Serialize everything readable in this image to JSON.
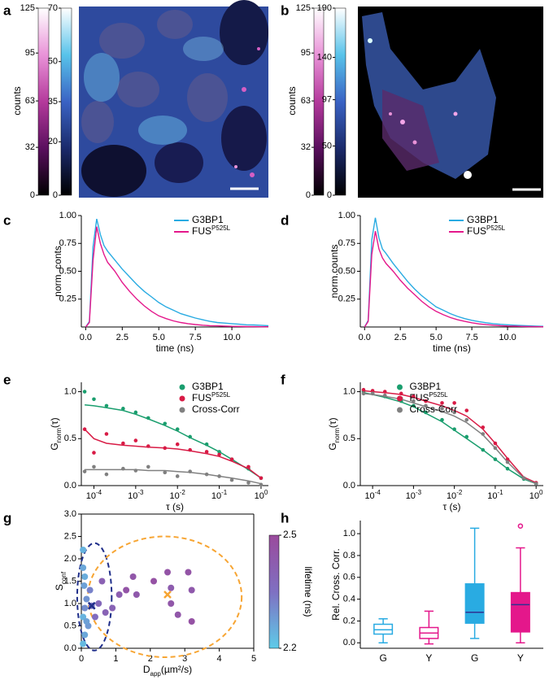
{
  "chart_data": [
    {
      "type": "image",
      "label": "a",
      "colorbar_label": "counts",
      "colorbars": [
        {
          "lim": [
            0,
            125
          ],
          "ticks": [
            0,
            32,
            63,
            95,
            125
          ],
          "colors": [
            "#000000",
            "#5a0f5e",
            "#b43a9c",
            "#e993d8",
            "#ffffff"
          ]
        },
        {
          "lim": [
            0,
            70
          ],
          "ticks": [
            0,
            20,
            35,
            50,
            70
          ],
          "colors": [
            "#000000",
            "#1b2a6b",
            "#3a63c4",
            "#58c3ea",
            "#ffffff"
          ]
        }
      ]
    },
    {
      "type": "image",
      "label": "b",
      "colorbar_label": "counts",
      "colorbars": [
        {
          "lim": [
            0,
            125
          ],
          "ticks": [
            0,
            32,
            63,
            95,
            125
          ],
          "colors": [
            "#000000",
            "#5a0f5e",
            "#b43a9c",
            "#e993d8",
            "#ffffff"
          ]
        },
        {
          "lim": [
            0,
            190
          ],
          "ticks": [
            0,
            50,
            97,
            140,
            190
          ],
          "colors": [
            "#000000",
            "#1b2a6b",
            "#3a63c4",
            "#58c3ea",
            "#ffffff"
          ]
        }
      ]
    },
    {
      "type": "line",
      "label": "c",
      "xlabel": "time (ns)",
      "ylabel": "norm. conts",
      "legend": "upper right",
      "xlim": [
        -0.3,
        12.5
      ],
      "ylim": [
        0,
        1
      ],
      "xticks": [
        {
          "value": 0,
          "label": "0.0"
        },
        2.5,
        {
          "value": 5,
          "label": "5.0"
        },
        7.5,
        {
          "value": 10,
          "label": "10.0"
        }
      ],
      "yticks": [
        0.25,
        {
          "value": 0.5,
          "label": "0.50"
        },
        0.75,
        {
          "value": 1,
          "label": "1.00"
        }
      ],
      "x": [
        0,
        0.25,
        0.5,
        0.75,
        1,
        1.25,
        1.5,
        2,
        2.5,
        3,
        3.5,
        4,
        4.5,
        5,
        5.5,
        6,
        6.5,
        7,
        7.5,
        8,
        8.5,
        9,
        9.5,
        10,
        10.5,
        11,
        11.5,
        12,
        12.5
      ],
      "series": [
        {
          "name": "G3BP1",
          "color": "#29abe2",
          "values": [
            0,
            0.05,
            0.72,
            0.97,
            0.83,
            0.73,
            0.68,
            0.6,
            0.52,
            0.45,
            0.38,
            0.32,
            0.27,
            0.22,
            0.18,
            0.15,
            0.12,
            0.1,
            0.08,
            0.065,
            0.05,
            0.04,
            0.035,
            0.03,
            0.025,
            0.02,
            0.018,
            0.015,
            0.012
          ]
        },
        {
          "name": "FUS",
          "name_sup": "P525L",
          "color": "#e4178b",
          "values": [
            0,
            0.04,
            0.6,
            0.9,
            0.75,
            0.65,
            0.58,
            0.5,
            0.4,
            0.32,
            0.25,
            0.19,
            0.14,
            0.1,
            0.075,
            0.055,
            0.04,
            0.03,
            0.022,
            0.016,
            0.012,
            0.01,
            0.008,
            0.006,
            0.005,
            0.004,
            0.003,
            0.002,
            0.002
          ]
        }
      ]
    },
    {
      "type": "line",
      "label": "d",
      "xlabel": "time (ns)",
      "ylabel": "norm.counts",
      "legend": "upper right",
      "xlim": [
        -0.3,
        12.5
      ],
      "ylim": [
        0,
        1
      ],
      "xticks": [
        {
          "value": 0,
          "label": "0.0"
        },
        2.5,
        {
          "value": 5,
          "label": "5.0"
        },
        7.5,
        {
          "value": 10,
          "label": "10.0"
        }
      ],
      "yticks": [
        0.25,
        {
          "value": 0.5,
          "label": "0.50"
        },
        0.75,
        {
          "value": 1,
          "label": "1.00"
        }
      ],
      "x": [
        0,
        0.25,
        0.5,
        0.75,
        1,
        1.25,
        1.5,
        2,
        2.5,
        3,
        3.5,
        4,
        4.5,
        5,
        5.5,
        6,
        6.5,
        7,
        7.5,
        8,
        8.5,
        9,
        9.5,
        10,
        10.5,
        11,
        11.5,
        12,
        12.5
      ],
      "series": [
        {
          "name": "G3BP1",
          "color": "#29abe2",
          "values": [
            0,
            0.06,
            0.78,
            0.98,
            0.8,
            0.7,
            0.66,
            0.57,
            0.49,
            0.41,
            0.34,
            0.28,
            0.23,
            0.18,
            0.15,
            0.12,
            0.095,
            0.075,
            0.06,
            0.048,
            0.038,
            0.03,
            0.024,
            0.02,
            0.016,
            0.013,
            0.01,
            0.008,
            0.006
          ]
        },
        {
          "name": "FUS",
          "name_sup": "P525L",
          "color": "#e4178b",
          "values": [
            0,
            0.05,
            0.65,
            0.86,
            0.7,
            0.62,
            0.57,
            0.5,
            0.42,
            0.35,
            0.29,
            0.23,
            0.18,
            0.14,
            0.11,
            0.085,
            0.065,
            0.05,
            0.038,
            0.028,
            0.021,
            0.016,
            0.012,
            0.009,
            0.007,
            0.005,
            0.004,
            0.003,
            0.002
          ]
        }
      ]
    },
    {
      "type": "scatter",
      "label": "e",
      "xlabel": "τ (s)",
      "ylabel": {
        "text": "G",
        "sub": "norm",
        "rest": "(τ)"
      },
      "xscale": "log",
      "legend": "upper right",
      "xlim": [
        5e-05,
        1.5
      ],
      "ylim": [
        0,
        1.1
      ],
      "xticks": [
        {
          "value": 0.0001,
          "label": "10",
          "label_sup": "-4"
        },
        {
          "value": 0.001,
          "label": "10",
          "label_sup": "-3"
        },
        {
          "value": 0.01,
          "label": "10",
          "label_sup": "-2"
        },
        {
          "value": 0.1,
          "label": "10",
          "label_sup": "-1"
        },
        {
          "value": 1,
          "label": "10",
          "label_sup": "0"
        }
      ],
      "yticks": [
        {
          "value": 0,
          "label": "0.0"
        },
        0.5,
        {
          "value": 1,
          "label": "1.0"
        }
      ],
      "x": [
        6e-05,
        0.0001,
        0.0002,
        0.0005,
        0.001,
        0.002,
        0.005,
        0.01,
        0.02,
        0.05,
        0.1,
        0.2,
        0.5,
        1
      ],
      "series": [
        {
          "name": "G3BP1",
          "color": "#1a9e6e",
          "values": [
            1.0,
            0.92,
            0.85,
            0.82,
            0.78,
            0.72,
            0.66,
            0.6,
            0.52,
            0.44,
            0.36,
            0.28,
            0.18,
            0.08
          ],
          "fit": [
            0.86,
            0.85,
            0.83,
            0.8,
            0.76,
            0.71,
            0.64,
            0.58,
            0.51,
            0.43,
            0.36,
            0.28,
            0.17,
            0.08
          ]
        },
        {
          "name": "FUS",
          "name_sup": "P525L",
          "color": "#d81b45",
          "values": [
            0.6,
            0.35,
            0.55,
            0.45,
            0.48,
            0.42,
            0.4,
            0.44,
            0.38,
            0.36,
            0.33,
            0.28,
            0.2,
            0.08
          ],
          "fit": [
            0.6,
            0.5,
            0.45,
            0.43,
            0.42,
            0.41,
            0.4,
            0.39,
            0.37,
            0.34,
            0.31,
            0.26,
            0.18,
            0.08
          ]
        },
        {
          "name": "Cross-Corr",
          "color": "#808080",
          "values": [
            0.15,
            0.2,
            0.12,
            0.18,
            0.16,
            0.2,
            0.14,
            0.1,
            0.15,
            0.12,
            0.1,
            0.06,
            0.03,
            0.01
          ],
          "fit": [
            0.17,
            0.17,
            0.17,
            0.17,
            0.17,
            0.16,
            0.16,
            0.15,
            0.14,
            0.12,
            0.1,
            0.08,
            0.05,
            0.02
          ]
        }
      ]
    },
    {
      "type": "scatter",
      "label": "f",
      "xlabel": "τ (s)",
      "ylabel": {
        "text": "G",
        "sub": "norm",
        "rest": "(τ)"
      },
      "xscale": "log",
      "legend": "upper center",
      "xlim": [
        5e-05,
        1.5
      ],
      "ylim": [
        0,
        1.1
      ],
      "xticks": [
        {
          "value": 0.0001,
          "label": "10",
          "label_sup": "-4"
        },
        {
          "value": 0.001,
          "label": "10",
          "label_sup": "-3"
        },
        {
          "value": 0.01,
          "label": "10",
          "label_sup": "-2"
        },
        {
          "value": 0.1,
          "label": "10",
          "label_sup": "-1"
        },
        {
          "value": 1,
          "label": "10",
          "label_sup": "0"
        }
      ],
      "yticks": [
        {
          "value": 0,
          "label": "0.0"
        },
        0.5,
        {
          "value": 1,
          "label": "1.0"
        }
      ],
      "x": [
        6e-05,
        0.0001,
        0.0002,
        0.0005,
        0.001,
        0.002,
        0.005,
        0.01,
        0.02,
        0.05,
        0.1,
        0.2,
        0.5,
        1
      ],
      "series": [
        {
          "name": "G3BP1",
          "color": "#1a9e6e",
          "values": [
            1.0,
            0.98,
            0.95,
            0.9,
            0.85,
            0.78,
            0.7,
            0.6,
            0.52,
            0.38,
            0.28,
            0.18,
            0.07,
            0.02
          ],
          "fit": [
            0.99,
            0.97,
            0.94,
            0.89,
            0.84,
            0.77,
            0.68,
            0.59,
            0.5,
            0.38,
            0.28,
            0.18,
            0.07,
            0.02
          ]
        },
        {
          "name": "FUS",
          "name_sup": "P525L",
          "color": "#d81b45",
          "values": [
            1.02,
            1.01,
            1.0,
            0.98,
            0.95,
            0.9,
            0.88,
            0.88,
            0.8,
            0.62,
            0.45,
            0.28,
            0.08,
            0.03
          ],
          "fit": [
            1.01,
            1.0,
            0.99,
            0.97,
            0.94,
            0.9,
            0.85,
            0.8,
            0.74,
            0.6,
            0.45,
            0.29,
            0.09,
            0.03
          ]
        },
        {
          "name": "Cross-Corr",
          "color": "#808080",
          "values": [
            0.98,
            0.98,
            0.96,
            0.93,
            0.9,
            0.85,
            0.82,
            0.78,
            0.7,
            0.55,
            0.4,
            0.25,
            0.08,
            0.02
          ],
          "fit": [
            0.98,
            0.97,
            0.95,
            0.92,
            0.88,
            0.84,
            0.79,
            0.74,
            0.67,
            0.54,
            0.4,
            0.25,
            0.08,
            0.02
          ]
        }
      ]
    },
    {
      "type": "colormap_scatter",
      "label": "g",
      "xlabel": {
        "text": "D",
        "sub": "app",
        "rest": "(µm²/s)"
      },
      "ylabel": {
        "text": "S",
        "sub": "conf"
      },
      "frame": true,
      "xlim": [
        0,
        5
      ],
      "ylim": [
        0,
        3
      ],
      "xticks": [
        0,
        1,
        2,
        3,
        4,
        5
      ],
      "yticks": [
        {
          "value": 0,
          "label": "0.0"
        },
        0.5,
        {
          "value": 1,
          "label": "1.0"
        },
        1.5,
        {
          "value": 2,
          "label": "2.0"
        },
        2.5,
        {
          "value": 3,
          "label": "3.0"
        }
      ],
      "colorbar": {
        "label": "lifetime (ns)",
        "lim": [
          2.2,
          2.5
        ],
        "ticks": [
          2.2,
          2.5
        ],
        "colors": [
          "#5ecbe8",
          "#7f70c2",
          "#9a4a9c"
        ]
      },
      "ellipses": [
        {
          "cx": 0.38,
          "cy": 1.15,
          "rx": 0.5,
          "ry": 1.2,
          "color": "#1f2e8a"
        },
        {
          "cx": 2.42,
          "cy": 1.15,
          "rx": 2.23,
          "ry": 1.35,
          "color": "#f7a533"
        }
      ],
      "centers": [
        {
          "x": 0.3,
          "y": 0.95,
          "color": "#1f2e8a"
        },
        {
          "x": 2.5,
          "y": 1.2,
          "color": "#f7a533"
        }
      ],
      "x": [
        1.3,
        1.5,
        1.6,
        2.1,
        2.5,
        2.6,
        2.6,
        3.1,
        3.2,
        3.2,
        2.8,
        1.1,
        0.9,
        0.6,
        0.5,
        0.7,
        0.4,
        0.3,
        0.05,
        0.05,
        0.1,
        0.08,
        0.15,
        0.1,
        0.05,
        0.2,
        0.1,
        0.05,
        0.25,
        0.15
      ],
      "values": [
        1.3,
        1.6,
        1.2,
        1.5,
        1.7,
        1.0,
        1.35,
        1.7,
        1.3,
        0.6,
        0.75,
        1.2,
        0.9,
        1.5,
        1.0,
        0.8,
        0.7,
        0.95,
        2.2,
        1.8,
        1.6,
        1.4,
        1.1,
        0.9,
        0.7,
        0.5,
        0.3,
        0.1,
        1.3,
        0.6
      ],
      "lifetime": [
        2.46,
        2.45,
        2.44,
        2.47,
        2.46,
        2.45,
        2.43,
        2.46,
        2.44,
        2.47,
        2.45,
        2.42,
        2.4,
        2.41,
        2.38,
        2.4,
        2.36,
        2.34,
        2.24,
        2.26,
        2.25,
        2.27,
        2.29,
        2.3,
        2.24,
        2.28,
        2.26,
        2.23,
        2.32,
        2.27
      ]
    },
    {
      "type": "box",
      "label": "h",
      "ylabel": "Rel. Cross. Corr.",
      "ylim": [
        -0.05,
        1.12
      ],
      "yticks": [
        {
          "value": 0,
          "label": "0.0"
        },
        0.2,
        0.4,
        0.6,
        0.8,
        {
          "value": 1,
          "label": "1.0"
        }
      ],
      "categories": [
        "G",
        "Y",
        "G",
        "Y"
      ],
      "boxes": [
        {
          "min": 0.0,
          "q1": 0.08,
          "median": 0.12,
          "q3": 0.17,
          "max": 0.22,
          "color": "#29abe2",
          "filled": false
        },
        {
          "min": -0.01,
          "q1": 0.04,
          "median": 0.09,
          "q3": 0.14,
          "max": 0.29,
          "color": "#e4178b",
          "filled": false
        },
        {
          "min": 0.04,
          "q1": 0.18,
          "median": 0.28,
          "q3": 0.54,
          "max": 1.05,
          "color": "#29abe2",
          "filled": true
        },
        {
          "min": 0.0,
          "q1": 0.1,
          "median": 0.35,
          "q3": 0.46,
          "max": 0.87,
          "outliers": [
            1.07
          ],
          "color": "#e4178b",
          "filled": true
        }
      ],
      "median_color": "#2e3192"
    }
  ]
}
